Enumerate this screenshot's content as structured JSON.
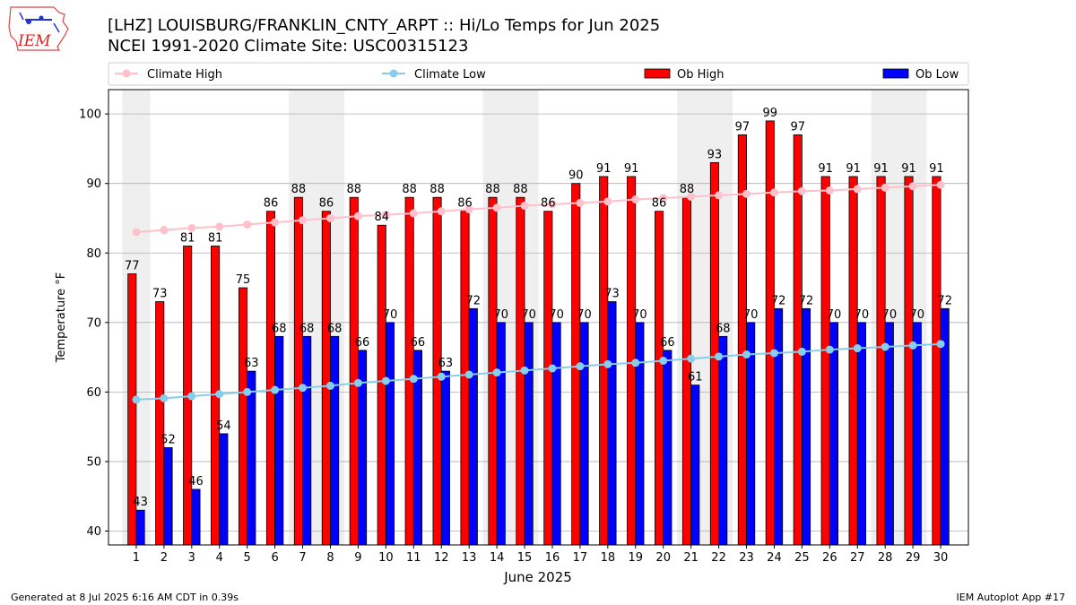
{
  "header": {
    "title_line1": "[LHZ] LOUISBURG/FRANKLIN_CNTY_ARPT :: Hi/Lo Temps for Jun 2025",
    "title_line2": "NCEI 1991-2020 Climate Site: USC00315123",
    "logo_text": "IEM"
  },
  "footer": {
    "generated": "Generated at 8 Jul 2025 6:16 AM CDT in 0.39s",
    "app": "IEM Autoplot App #17"
  },
  "chart_data": {
    "type": "bar",
    "xlabel": "June 2025",
    "ylabel": "Temperature °F",
    "ylim": [
      38,
      103.5
    ],
    "yticks": [
      40,
      50,
      60,
      70,
      80,
      90,
      100
    ],
    "grid": true,
    "legend_placement": "top",
    "categories": [
      "1",
      "2",
      "3",
      "4",
      "5",
      "6",
      "7",
      "8",
      "9",
      "10",
      "11",
      "12",
      "13",
      "14",
      "15",
      "16",
      "17",
      "18",
      "19",
      "20",
      "21",
      "22",
      "23",
      "24",
      "25",
      "26",
      "27",
      "28",
      "29",
      "30"
    ],
    "weekend_shading_days": [
      [
        1,
        1
      ],
      [
        7,
        8
      ],
      [
        14,
        15
      ],
      [
        21,
        22
      ],
      [
        28,
        29
      ]
    ],
    "series": [
      {
        "name": "Climate High",
        "kind": "line",
        "color": "#ffc0cb",
        "values": [
          83.0,
          83.3,
          83.6,
          83.8,
          84.1,
          84.4,
          84.7,
          85.0,
          85.3,
          85.5,
          85.7,
          86.0,
          86.3,
          86.5,
          86.8,
          87.0,
          87.2,
          87.4,
          87.7,
          87.9,
          88.1,
          88.3,
          88.5,
          88.7,
          88.9,
          89.0,
          89.2,
          89.4,
          89.6,
          89.8
        ]
      },
      {
        "name": "Climate Low",
        "kind": "line",
        "color": "#87ceeb",
        "values": [
          58.9,
          59.1,
          59.4,
          59.7,
          60.0,
          60.3,
          60.6,
          60.9,
          61.3,
          61.6,
          61.9,
          62.2,
          62.5,
          62.8,
          63.1,
          63.4,
          63.7,
          64.0,
          64.2,
          64.5,
          64.8,
          65.1,
          65.4,
          65.6,
          65.8,
          66.1,
          66.3,
          66.5,
          66.7,
          66.9
        ]
      },
      {
        "name": "Ob High",
        "kind": "bar",
        "color": "#ff0000",
        "values": [
          77,
          73,
          81,
          81,
          75,
          86,
          88,
          86,
          88,
          84,
          88,
          88,
          86,
          88,
          88,
          86,
          90,
          91,
          91,
          86,
          88,
          93,
          97,
          99,
          97,
          91,
          91,
          91,
          91,
          91
        ]
      },
      {
        "name": "Ob Low",
        "kind": "bar",
        "color": "#0000ff",
        "values": [
          43,
          52,
          46,
          54,
          63,
          68,
          68,
          68,
          66,
          70,
          66,
          63,
          72,
          70,
          70,
          70,
          70,
          73,
          70,
          66,
          61,
          68,
          70,
          72,
          72,
          70,
          70,
          70,
          70,
          72
        ]
      }
    ]
  }
}
